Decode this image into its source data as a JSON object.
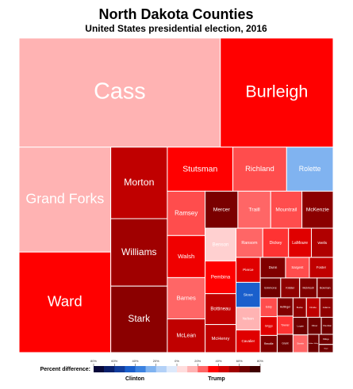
{
  "chart_data": {
    "type": "treemap",
    "title": "North Dakota Counties",
    "subtitle": "United States presidential election, 2016",
    "categories": [
      "Cass",
      "Burleigh",
      "Grand Forks",
      "Ward",
      "Morton",
      "Williams",
      "Stark",
      "Stutsman",
      "Richland",
      "Rolette",
      "Ramsey",
      "Walsh",
      "Barnes",
      "McLean",
      "Mercer",
      "Traill",
      "Mountrail",
      "McKenzie",
      "Benson",
      "Pembina",
      "Bottineau",
      "McHenry",
      "Ransom",
      "Dickey",
      "LaMoure",
      "Wells",
      "Pierce",
      "Sioux",
      "Nelson",
      "Cavalier",
      "Dunn",
      "Sargent",
      "Foster",
      "Emmons",
      "Kidder",
      "McIntosh",
      "Bowman",
      "Eddy",
      "Griggs",
      "Renville",
      "Hettinger",
      "Towner",
      "Grant",
      "Burke",
      "Divide",
      "Adams",
      "Logan",
      "Steele",
      "Oliver",
      "Sheridan",
      "Golden Valley",
      "Billings",
      "Slope"
    ],
    "values": [
      76000,
      42600,
      33300,
      31900,
      14000,
      13200,
      13000,
      10000,
      8200,
      7100,
      5800,
      5500,
      5400,
      4400,
      4200,
      4200,
      4000,
      4000,
      3500,
      3500,
      3300,
      3000,
      2700,
      2600,
      2300,
      2200,
      2100,
      2100,
      1900,
      1900,
      1800,
      1700,
      1700,
      1400,
      1300,
      1200,
      1100,
      1100,
      1100,
      1000,
      1000,
      1000,
      1000,
      900,
      900,
      900,
      900,
      900,
      800,
      700,
      700,
      500,
      400
    ],
    "colors": [
      "#ffb3b3",
      "#ff0000",
      "#ffb3b3",
      "#ff0000",
      "#c00000",
      "#a00000",
      "#8b0000",
      "#ff0000",
      "#ff4d4d",
      "#80b3f0",
      "#ff4d4d",
      "#f00000",
      "#ff6666",
      "#c00000",
      "#7a0000",
      "#ff6666",
      "#ff4d4d",
      "#8b0000",
      "#ffd0d0",
      "#ff0000",
      "#c00000",
      "#c00000",
      "#ff6666",
      "#ff3333",
      "#e00000",
      "#b00000",
      "#e00000",
      "#1a5fcc",
      "#ffb3b3",
      "#e00000",
      "#800000",
      "#ff4d4d",
      "#c00000",
      "#700000",
      "#900000",
      "#800000",
      "#800000",
      "#ff4d4d",
      "#e00000",
      "#800000",
      "#800000",
      "#ff3333",
      "#700000",
      "#900000",
      "#c00000",
      "#900000",
      "#700000",
      "#ff6666",
      "#700000",
      "#700000",
      "#700000",
      "#700000",
      "#700000"
    ],
    "colorbar": {
      "label": "Percent difference:",
      "left_label": "Clinton",
      "right_label": "Trump",
      "lim": [
        -80,
        80
      ],
      "colors": [
        "#08083a",
        "#0a1f6b",
        "#123c9c",
        "#1a5fcc",
        "#3b82e0",
        "#80b3f0",
        "#b3d1f7",
        "#dde9fb",
        "#ffdddd",
        "#ffb3b3",
        "#ff6666",
        "#ff0000",
        "#d00000",
        "#a00000",
        "#700000",
        "#400000"
      ],
      "ticks": [
        {
          "value": -80,
          "label": "80%"
        },
        {
          "value": -60,
          "label": "60%"
        },
        {
          "value": -40,
          "label": "40%"
        },
        {
          "value": -20,
          "label": "20%"
        },
        {
          "value": 0,
          "label": "0%"
        },
        {
          "value": 20,
          "label": "20%"
        },
        {
          "value": 40,
          "label": "40%"
        },
        {
          "value": 60,
          "label": "60%"
        },
        {
          "value": 80,
          "label": "80%"
        }
      ]
    }
  }
}
